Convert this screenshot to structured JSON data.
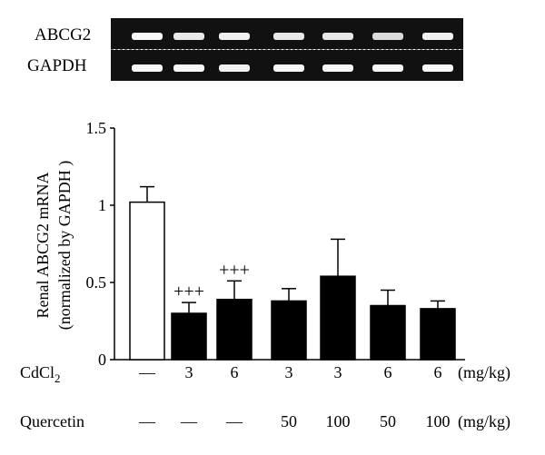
{
  "blot": {
    "labels": [
      "ABCG2",
      "GAPDH"
    ],
    "band_intensity": [
      [
        0.95,
        0.85,
        0.9,
        0.85,
        0.85,
        0.75,
        0.9
      ],
      [
        0.95,
        0.95,
        0.9,
        0.95,
        0.95,
        0.95,
        0.95
      ]
    ]
  },
  "chart_data": {
    "type": "bar",
    "ylabel_line1": "Renal ABCG2 mRNA",
    "ylabel_line2": "(normalized by GAPDH )",
    "ylim": [
      0,
      1.5
    ],
    "yticks": [
      "0",
      "0.5",
      "1",
      "1.5"
    ],
    "ytick_values": [
      0,
      0.5,
      1,
      1.5
    ],
    "values": [
      1.02,
      0.3,
      0.39,
      0.38,
      0.54,
      0.35,
      0.33
    ],
    "errors": [
      0.1,
      0.07,
      0.12,
      0.08,
      0.24,
      0.1,
      0.05
    ],
    "fills": [
      "#ffffff",
      "#000000",
      "#000000",
      "#000000",
      "#000000",
      "#000000",
      "#000000"
    ],
    "annotations": [
      "",
      "+++",
      "+++",
      "",
      "",
      "",
      ""
    ],
    "rows": [
      {
        "label": "CdCl",
        "subscript": "2",
        "values": [
          "—",
          "3",
          "6",
          "3",
          "3",
          "6",
          "6"
        ],
        "unit": "(mg/kg)"
      },
      {
        "label": "Quercetin",
        "subscript": "",
        "values": [
          "—",
          "—",
          "—",
          "50",
          "100",
          "50",
          "100"
        ],
        "unit": "(mg/kg)"
      }
    ]
  }
}
